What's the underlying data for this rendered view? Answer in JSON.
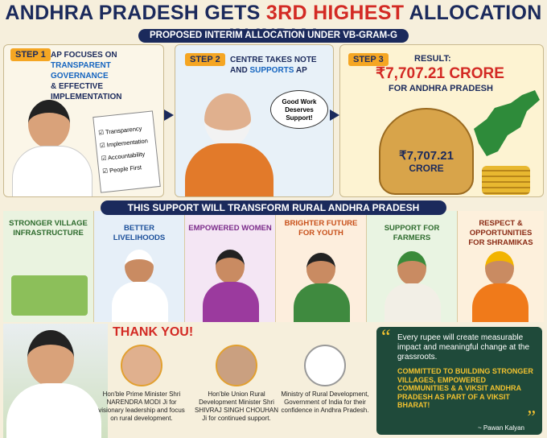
{
  "header": {
    "title_start": "ANDHRA PRADESH GETS ",
    "title_highlight": "3RD HIGHEST",
    "title_end": " ALLOCATION IN INDIA!",
    "subtitle": "PROPOSED INTERIM ALLOCATION UNDER VB-GRAM-G"
  },
  "steps": [
    {
      "label": "STEP 1",
      "lines": [
        "AP FOCUSES ON",
        "TRANSPARENT GOVERNANCE",
        "& EFFECTIVE IMPLEMENTATION"
      ],
      "checklist": [
        "Transparency",
        "Implementation",
        "Accountability",
        "People First"
      ]
    },
    {
      "label": "STEP 2",
      "line1": "CENTRE TAKES NOTE",
      "line2_start": "AND ",
      "line2_highlight": "SUPPORTS",
      "line2_end": " AP",
      "bubble": "Good Work Deserves Support!"
    },
    {
      "label": "STEP 3",
      "result": "RESULT:",
      "amount": "₹7,707.21 CRORE",
      "for": "FOR ANDHRA PRADESH",
      "bag_amount": "₹7,707.21",
      "bag_unit": "CRORE"
    }
  ],
  "banner": "THIS SUPPORT WILL TRANSFORM RURAL ANDHRA PRADESH",
  "benefits": [
    "STRONGER VILLAGE INFRASTRUCTURE",
    "BETTER LIVELIHOODS",
    "EMPOWERED WOMEN",
    "BRIGHTER FUTURE FOR YOUTH",
    "SUPPORT FOR FARMERS",
    "RESPECT & OPPORTUNITIES FOR SHRAMIKAS"
  ],
  "thanks": {
    "title": "THANK YOU!",
    "people": [
      "Hon'ble Prime Minister Shri NARENDRA MODI Ji for visionary leadership and focus on rural development.",
      "Hon'ble Union Rural Development Minister Shri SHIVRAJ SINGH CHOUHAN Ji for continued support.",
      "Ministry of Rural Development, Government of India for their confidence in Andhra Pradesh."
    ]
  },
  "quote": {
    "open_mark": "“",
    "text": "Every rupee will create measurable impact and meaningful change at the grassroots.",
    "highlight": "COMMITTED TO BUILDING STRONGER VILLAGES, EMPOWERED COMMUNITIES & A VIKSIT ANDHRA PRADESH AS PART OF A VIKSIT BHARAT!",
    "close_mark": "”",
    "author": "~ Pawan Kalyan"
  }
}
